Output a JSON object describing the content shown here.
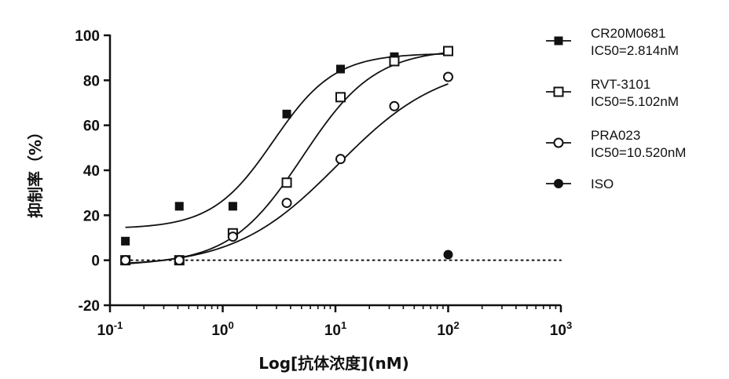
{
  "chart_data": {
    "type": "scatter",
    "xlabel": "Log[抗体浓度](nM)",
    "ylabel": "抑制率（%）",
    "x_scale": "log",
    "xlim": [
      0.1,
      1000
    ],
    "ylim": [
      -20,
      100
    ],
    "x_ticks": [
      {
        "base": "10",
        "exp": "-1",
        "value": 0.1
      },
      {
        "base": "10",
        "exp": "0",
        "value": 1
      },
      {
        "base": "10",
        "exp": "1",
        "value": 10
      },
      {
        "base": "10",
        "exp": "2",
        "value": 100
      },
      {
        "base": "10",
        "exp": "3",
        "value": 1000
      }
    ],
    "y_ticks": [
      -20,
      0,
      20,
      40,
      60,
      80,
      100
    ],
    "grid": false,
    "legend_position": "right",
    "reference_line": {
      "y": 0,
      "style": "dotted"
    },
    "series": [
      {
        "name": "CR20M0681",
        "ic50_label": "IC50=2.814nM",
        "marker": "filled-square",
        "x": [
          0.137,
          0.412,
          1.23,
          3.7,
          11.1,
          33.3,
          100
        ],
        "y": [
          8.5,
          24,
          24,
          65,
          85,
          90.5,
          93
        ],
        "fit": {
          "bottom": 14,
          "top": 92,
          "ic50": 2.814,
          "hill": 1.6
        }
      },
      {
        "name": "RVT-3101",
        "ic50_label": "IC50=5.102nM",
        "marker": "open-square",
        "x": [
          0.137,
          0.412,
          1.23,
          3.7,
          11.1,
          33.3,
          100
        ],
        "y": [
          0,
          0,
          12,
          34.5,
          72.5,
          88.5,
          93
        ],
        "fit": {
          "bottom": -2,
          "top": 94,
          "ic50": 5.102,
          "hill": 1.35
        }
      },
      {
        "name": "PRA023",
        "ic50_label": "IC50=10.520nM",
        "marker": "open-circle",
        "x": [
          0.137,
          0.412,
          1.23,
          3.7,
          11.1,
          33.3,
          100
        ],
        "y": [
          0,
          0,
          10.5,
          25.5,
          45,
          68.5,
          81.5
        ],
        "fit": {
          "bottom": -3,
          "top": 88,
          "ic50": 10.52,
          "hill": 0.95
        }
      },
      {
        "name": "ISO",
        "ic50_label": "",
        "marker": "filled-circle",
        "x": [
          100
        ],
        "y": [
          2.5
        ],
        "fit": null
      }
    ]
  }
}
